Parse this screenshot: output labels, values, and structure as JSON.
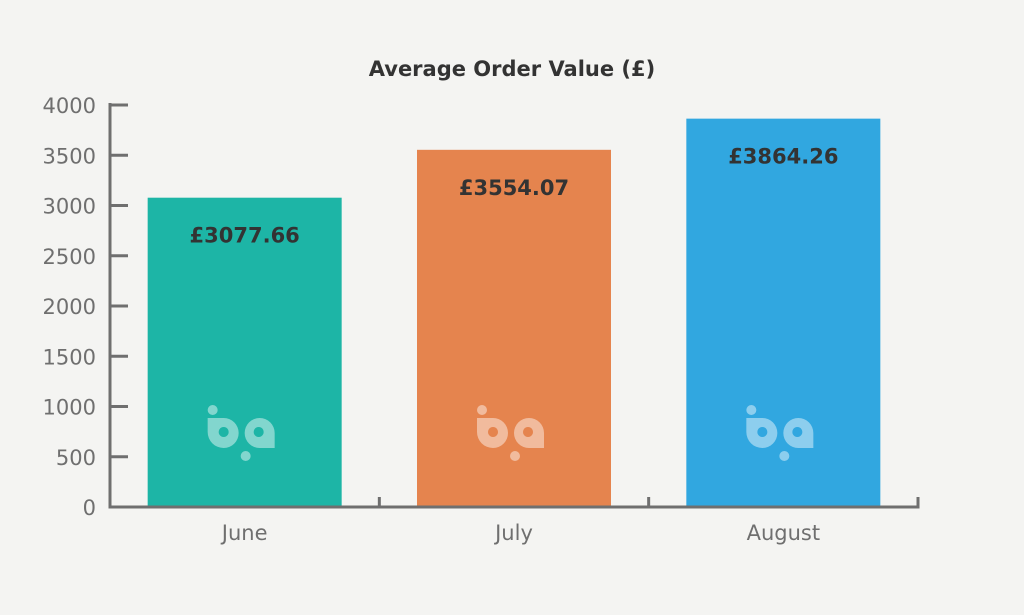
{
  "chart_data": {
    "type": "bar",
    "title": "Average Order Value (£)",
    "xlabel": "",
    "ylabel": "",
    "categories": [
      "June",
      "July",
      "August"
    ],
    "values": [
      3077.66,
      3554.07,
      3864.26
    ],
    "data_labels": [
      "£3077.66",
      "£3554.07",
      "£3864.26"
    ],
    "colors": [
      "#1db5a6",
      "#e5844e",
      "#31a7e0"
    ],
    "ylim": [
      0,
      4000
    ],
    "yticks": [
      0,
      500,
      1000,
      1500,
      2000,
      2500,
      3000,
      3500,
      4000
    ],
    "grid": false,
    "watermark": "bp"
  }
}
